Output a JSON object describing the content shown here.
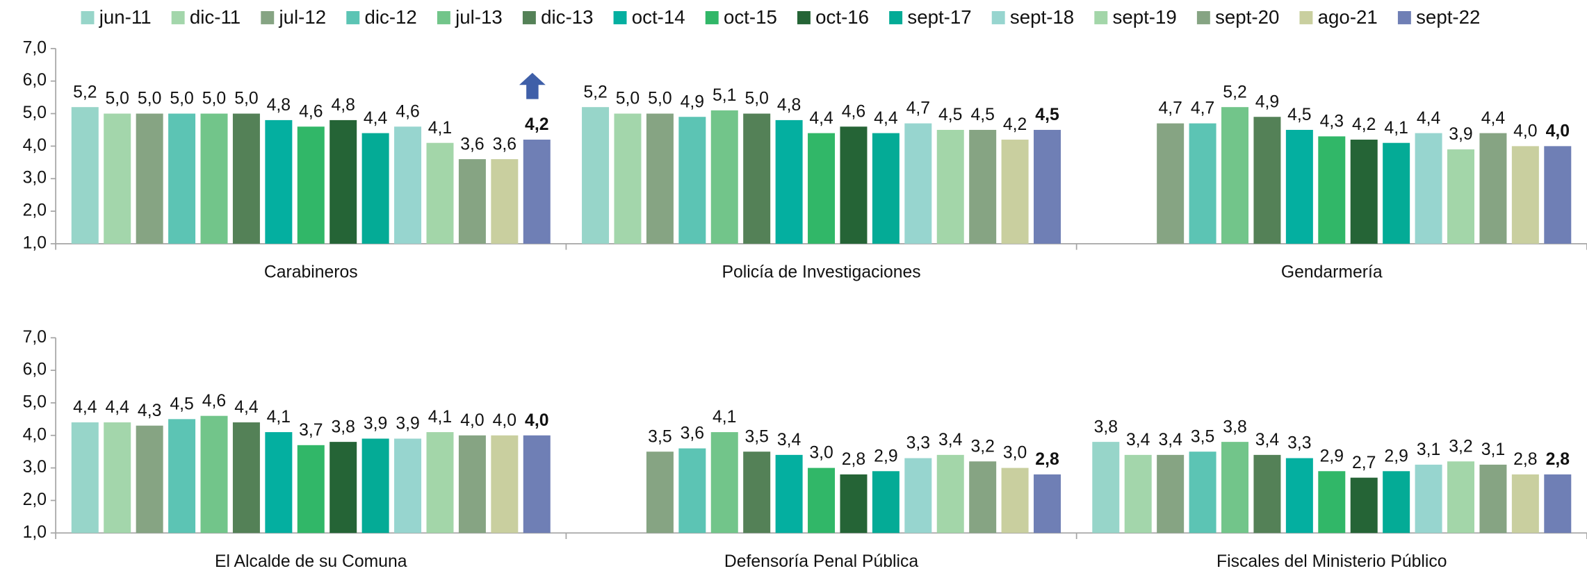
{
  "chart_data": {
    "type": "bar",
    "categories": [
      "Carabineros",
      "Policía de Investigaciones",
      "Gendarmería",
      "El Alcalde de su Comuna",
      "Defensoría Penal Pública",
      "Fiscales del Ministerio Público"
    ],
    "ylim": [
      1,
      7
    ],
    "yticks": [
      {
        "value": 1,
        "label": "1,0"
      },
      {
        "value": 2,
        "label": "2,0"
      },
      {
        "value": 3,
        "label": "3,0"
      },
      {
        "value": 4,
        "label": "4,0"
      },
      {
        "value": 5,
        "label": "5,0"
      },
      {
        "value": 6,
        "label": "6,0"
      },
      {
        "value": 7,
        "label": "7,0"
      }
    ],
    "legend": "top",
    "series": [
      {
        "name": "jun-11",
        "color": "#97d5c9",
        "values": [
          5.2,
          5.2,
          null,
          4.4,
          null,
          3.8
        ],
        "value_labels": [
          "5,2",
          "5,2",
          null,
          "4,4",
          null,
          "3,8"
        ]
      },
      {
        "name": "dic-11",
        "color": "#a3d6ab",
        "values": [
          5.0,
          5.0,
          null,
          4.4,
          null,
          3.4
        ],
        "value_labels": [
          "5,0",
          "5,0",
          null,
          "4,4",
          null,
          "3,4"
        ]
      },
      {
        "name": "jul-12",
        "color": "#86a483",
        "values": [
          5.0,
          5.0,
          4.7,
          4.3,
          3.5,
          3.4
        ],
        "value_labels": [
          "5,0",
          "5,0",
          "4,7",
          "4,3",
          "3,5",
          "3,4"
        ]
      },
      {
        "name": "dic-12",
        "color": "#5cc4b4",
        "values": [
          5.0,
          4.9,
          4.7,
          4.5,
          3.6,
          3.5
        ],
        "value_labels": [
          "5,0",
          "4,9",
          "4,7",
          "4,5",
          "3,6",
          "3,5"
        ]
      },
      {
        "name": "jul-13",
        "color": "#72c58a",
        "values": [
          5.0,
          5.1,
          5.2,
          4.6,
          4.1,
          3.8
        ],
        "value_labels": [
          "5,0",
          "5,1",
          "5,2",
          "4,6",
          "4,1",
          "3,8"
        ]
      },
      {
        "name": "dic-13",
        "color": "#548157",
        "values": [
          5.0,
          5.0,
          4.9,
          4.4,
          3.5,
          3.4
        ],
        "value_labels": [
          "5,0",
          "5,0",
          "4,9",
          "4,4",
          "3,5",
          "3,4"
        ]
      },
      {
        "name": "oct-14",
        "color": "#04afa0",
        "values": [
          4.8,
          4.8,
          4.5,
          4.1,
          3.4,
          3.3
        ],
        "value_labels": [
          "4,8",
          "4,8",
          "4,5",
          "4,1",
          "3,4",
          "3,3"
        ]
      },
      {
        "name": "oct-15",
        "color": "#31b768",
        "values": [
          4.6,
          4.4,
          4.3,
          3.7,
          3.0,
          2.9
        ],
        "value_labels": [
          "4,6",
          "4,4",
          "4,3",
          "3,7",
          "3,0",
          "2,9"
        ]
      },
      {
        "name": "oct-16",
        "color": "#256436",
        "values": [
          4.8,
          4.6,
          4.2,
          3.8,
          2.8,
          2.7
        ],
        "value_labels": [
          "4,8",
          "4,6",
          "4,2",
          "3,8",
          "2,8",
          "2,7"
        ]
      },
      {
        "name": "sept-17",
        "color": "#04ab96",
        "values": [
          4.4,
          4.4,
          4.1,
          3.9,
          2.9,
          2.9
        ],
        "value_labels": [
          "4,4",
          "4,4",
          "4,1",
          "3,9",
          "2,9",
          "2,9"
        ]
      },
      {
        "name": "sept-18",
        "color": "#97d5cf",
        "values": [
          4.6,
          4.7,
          4.4,
          3.9,
          3.3,
          3.1
        ],
        "value_labels": [
          "4,6",
          "4,7",
          "4,4",
          "3,9",
          "3,3",
          "3,1"
        ]
      },
      {
        "name": "sept-19",
        "color": "#a3d6a9",
        "values": [
          4.1,
          4.5,
          3.9,
          4.1,
          3.4,
          3.2
        ],
        "value_labels": [
          "4,1",
          "4,5",
          "3,9",
          "4,1",
          "3,4",
          "3,2"
        ]
      },
      {
        "name": "sept-20",
        "color": "#86a483",
        "values": [
          3.6,
          4.5,
          4.4,
          4.0,
          3.2,
          3.1
        ],
        "value_labels": [
          "3,6",
          "4,5",
          "4,4",
          "4,0",
          "3,2",
          "3,1"
        ]
      },
      {
        "name": "ago-21",
        "color": "#c9cf9f",
        "values": [
          3.6,
          4.2,
          4.0,
          4.0,
          3.0,
          2.8
        ],
        "value_labels": [
          "3,6",
          "4,2",
          "4,0",
          "4,0",
          "3,0",
          "2,8"
        ]
      },
      {
        "name": "sept-22",
        "color": "#6f7fb5",
        "values": [
          4.2,
          4.5,
          4.0,
          4.0,
          2.8,
          2.8
        ],
        "value_labels": [
          "4,2",
          "4,5",
          "4,0",
          "4,0",
          "2,8",
          "2,8"
        ]
      }
    ]
  }
}
